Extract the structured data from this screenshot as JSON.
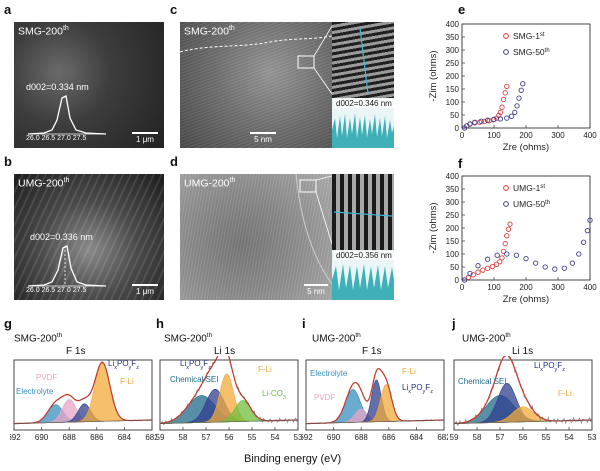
{
  "panels": {
    "a": {
      "letter": "a",
      "sample": "SMG-200",
      "sup": "th",
      "dspacing": "d002=0.334 nm",
      "ticks": "26.0 26.5 27.0 27.5",
      "scale": "1 μm"
    },
    "b": {
      "letter": "b",
      "sample": "UMG-200",
      "sup": "th",
      "dspacing": "d002=0.336 nm",
      "ticks": "26.0 26.5 27.0 27.5",
      "scale": "1 μm"
    },
    "c": {
      "letter": "c",
      "sample": "SMG-200",
      "sup": "th",
      "dspacing": "d002=0.346 nm",
      "scale": "5 nm"
    },
    "d": {
      "letter": "d",
      "sample": "UMG-200",
      "sup": "th",
      "dspacing": "d002=0.356 nm",
      "scale": "5 nm"
    },
    "e": {
      "letter": "e"
    },
    "f": {
      "letter": "f"
    },
    "g": {
      "letter": "g",
      "title": "SMG-200",
      "sup": "th",
      "core": "F 1s"
    },
    "h": {
      "letter": "h",
      "title": "SMG-200",
      "sup": "th",
      "core": "Li 1s"
    },
    "i": {
      "letter": "i",
      "title": "UMG-200",
      "sup": "th",
      "core": "F 1s"
    },
    "j": {
      "letter": "j",
      "title": "UMG-200",
      "sup": "th",
      "core": "Li 1s"
    }
  },
  "chart_data": [
    {
      "panel": "e",
      "type": "scatter",
      "xlabel": "Zre (ohms)",
      "ylabel": "-Zim (ohms)",
      "xlim": [
        0,
        400
      ],
      "ylim": [
        0,
        400
      ],
      "xticks": [
        0,
        100,
        200,
        300,
        400
      ],
      "yticks": [
        0,
        50,
        100,
        150,
        200,
        250,
        300,
        350,
        400
      ],
      "legend": "top-right",
      "series": [
        {
          "name": "SMG-1",
          "name_sup": "st",
          "color": "#e04040",
          "x": [
            8,
            15,
            25,
            40,
            55,
            70,
            85,
            98,
            108,
            115,
            120,
            125,
            130,
            135,
            140
          ],
          "y": [
            0,
            8,
            15,
            20,
            22,
            25,
            28,
            32,
            38,
            48,
            60,
            80,
            110,
            135,
            160
          ]
        },
        {
          "name": "SMG-50",
          "name_sup": "th",
          "color": "#404090",
          "x": [
            8,
            15,
            25,
            40,
            60,
            80,
            100,
            120,
            140,
            155,
            165,
            172,
            178,
            185,
            190
          ],
          "y": [
            0,
            8,
            16,
            22,
            26,
            30,
            33,
            35,
            38,
            45,
            60,
            85,
            115,
            145,
            170
          ]
        }
      ]
    },
    {
      "panel": "f",
      "type": "scatter",
      "xlabel": "Zre (ohms)",
      "ylabel": "-Zim (ohms)",
      "xlim": [
        0,
        400
      ],
      "ylim": [
        0,
        400
      ],
      "xticks": [
        0,
        100,
        200,
        300,
        400
      ],
      "yticks": [
        0,
        50,
        100,
        150,
        200,
        250,
        300,
        350,
        400
      ],
      "legend": "top-right",
      "series": [
        {
          "name": "UMG-1",
          "name_sup": "st",
          "color": "#e04040",
          "x": [
            8,
            20,
            35,
            50,
            65,
            80,
            95,
            108,
            118,
            125,
            130,
            135,
            140,
            145,
            150
          ],
          "y": [
            0,
            10,
            20,
            30,
            38,
            45,
            52,
            60,
            70,
            85,
            110,
            140,
            170,
            195,
            215
          ]
        },
        {
          "name": "UMG-50",
          "name_sup": "th",
          "color": "#404090",
          "x": [
            8,
            25,
            50,
            80,
            110,
            140,
            170,
            200,
            230,
            260,
            290,
            320,
            345,
            365,
            380,
            392,
            400
          ],
          "y": [
            0,
            25,
            55,
            80,
            95,
            100,
            95,
            82,
            65,
            50,
            42,
            45,
            65,
            100,
            145,
            190,
            230
          ]
        }
      ]
    },
    {
      "panel": "g",
      "type": "line",
      "xlabel": "",
      "ylabel": "",
      "xlim": [
        692,
        682
      ],
      "xticks": [
        692,
        690,
        688,
        686,
        684,
        682
      ],
      "legend": "inside",
      "series": [
        {
          "name": "Electrolyte",
          "color": "#3a8fc0",
          "center": 689.0,
          "height": 0.3,
          "width": 1.1
        },
        {
          "name": "PVDF",
          "color": "#e7a6c6",
          "center": 688.0,
          "height": 0.38,
          "width": 1.0
        },
        {
          "name": "Li",
          "name_sub": "x",
          "name_rest": "PO",
          "name_sub2": "y",
          "name_rest2": "F",
          "name_sub3": "z",
          "color": "#2f3f8f",
          "center": 686.9,
          "height": 0.3,
          "width": 0.9
        },
        {
          "name": "F-Li",
          "color": "#f2a93b",
          "center": 685.6,
          "height": 0.98,
          "width": 1.1
        }
      ]
    },
    {
      "panel": "h",
      "type": "line",
      "xlabel": "",
      "ylabel": "",
      "xlim": [
        59,
        53
      ],
      "xticks": [
        59,
        58,
        57,
        56,
        55,
        54,
        53
      ],
      "legend": "inside",
      "series": [
        {
          "name": "Chemical SEI",
          "color": "#1f6a8a",
          "center": 57.2,
          "height": 0.45,
          "width": 1.2
        },
        {
          "name": "Li",
          "name_sub": "x",
          "name_rest": "PO",
          "name_sub2": "y",
          "name_rest2": "F",
          "name_sub3": "z",
          "color": "#2f3f8f",
          "center": 56.6,
          "height": 0.55,
          "width": 0.8
        },
        {
          "name": "F-Li",
          "color": "#f2a93b",
          "center": 56.1,
          "height": 0.8,
          "width": 0.6
        },
        {
          "name": "Li-CO",
          "name_sub": "3",
          "color": "#6fbf3f",
          "center": 55.4,
          "height": 0.35,
          "width": 0.7
        }
      ]
    },
    {
      "panel": "i",
      "type": "line",
      "xlabel": "",
      "ylabel": "",
      "xlim": [
        692,
        682
      ],
      "xticks": [
        692,
        690,
        688,
        686,
        684,
        682
      ],
      "legend": "inside",
      "series": [
        {
          "name": "Electrolyte",
          "color": "#3a8fc0",
          "center": 688.6,
          "height": 0.55,
          "width": 1.1
        },
        {
          "name": "PVDF",
          "color": "#e7a6c6",
          "center": 688.0,
          "height": 0.22,
          "width": 0.9
        },
        {
          "name": "Li",
          "name_sub": "x",
          "name_rest": "PO",
          "name_sub2": "y",
          "name_rest2": "F",
          "name_sub3": "z",
          "color": "#2f3f8f",
          "center": 686.9,
          "height": 0.7,
          "width": 0.7
        },
        {
          "name": "F-Li",
          "color": "#f2a93b",
          "center": 686.2,
          "height": 0.62,
          "width": 0.8
        }
      ]
    },
    {
      "panel": "j",
      "type": "line",
      "xlabel": "",
      "ylabel": "",
      "xlim": [
        59,
        53
      ],
      "xticks": [
        59,
        58,
        57,
        56,
        55,
        54,
        53
      ],
      "legend": "inside",
      "series": [
        {
          "name": "Chemical SEI",
          "color": "#1f6a8a",
          "center": 57.0,
          "height": 0.45,
          "width": 1.2
        },
        {
          "name": "Li",
          "name_sub": "x",
          "name_rest": "PO",
          "name_sub2": "y",
          "name_rest2": "F",
          "name_sub3": "z",
          "color": "#2f3f8f",
          "center": 56.7,
          "height": 0.65,
          "width": 0.8
        },
        {
          "name": "F-Li",
          "color": "#f2a93b",
          "center": 56.0,
          "height": 0.25,
          "width": 0.9
        }
      ]
    }
  ],
  "footer": {
    "xlabel": "Binding energy (eV)"
  }
}
